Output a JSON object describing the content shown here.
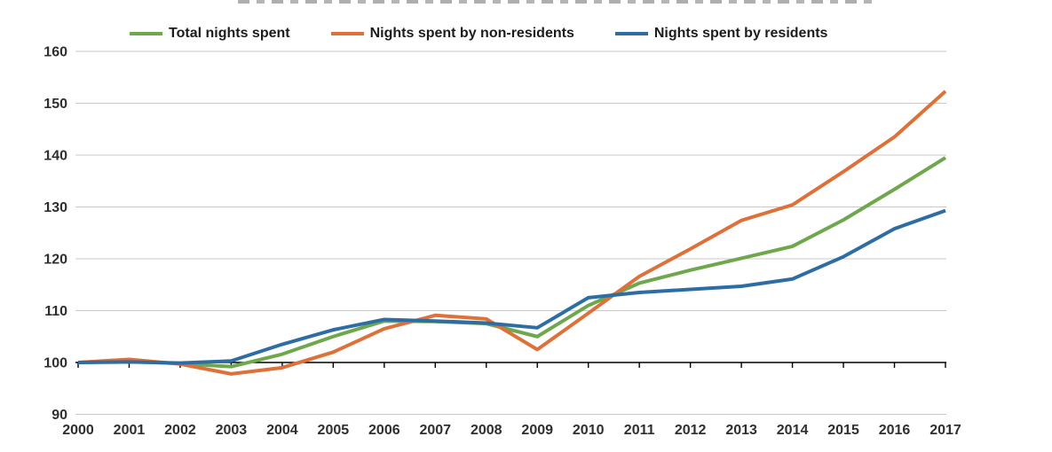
{
  "legend": [
    {
      "label": "Total nights spent",
      "color": "#6FA84C"
    },
    {
      "label": "Nights spent by non-residents",
      "color": "#DE7139"
    },
    {
      "label": "Nights spent by residents",
      "color": "#2E6DA4"
    }
  ],
  "chart_data": {
    "type": "line",
    "title_visible": false,
    "x": [
      2000,
      2001,
      2002,
      2003,
      2004,
      2005,
      2006,
      2007,
      2008,
      2009,
      2010,
      2011,
      2012,
      2013,
      2014,
      2015,
      2016,
      2017
    ],
    "series": [
      {
        "id": "total",
        "name": "Total nights spent",
        "color": "#6FA84C",
        "values": [
          100,
          100.2,
          99.8,
          99.2,
          101.6,
          105.0,
          108.0,
          107.9,
          107.5,
          105.0,
          111.0,
          115.3,
          117.8,
          120.1,
          122.4,
          127.5,
          133.4,
          139.5
        ]
      },
      {
        "id": "non-residents",
        "name": "Nights spent by non-residents",
        "color": "#DE7139",
        "values": [
          100,
          100.6,
          99.7,
          97.8,
          99.0,
          102.0,
          106.5,
          109.1,
          108.4,
          102.5,
          109.5,
          116.6,
          121.9,
          127.4,
          130.4,
          136.8,
          143.5,
          152.3
        ]
      },
      {
        "id": "residents",
        "name": "Nights spent by residents",
        "color": "#2E6DA4",
        "values": [
          100,
          100.1,
          99.9,
          100.3,
          103.5,
          106.3,
          108.3,
          108.0,
          107.6,
          106.7,
          112.5,
          113.5,
          114.1,
          114.7,
          116.1,
          120.4,
          125.8,
          129.3
        ]
      }
    ],
    "ylim": [
      90,
      160
    ],
    "yticks": [
      90,
      100,
      110,
      120,
      130,
      140,
      150,
      160
    ],
    "baseline_value": 100,
    "grid": true,
    "grid_color": "#c9c9c9",
    "axis_color": "#000000",
    "tick_label_color": "#2f2f2f",
    "legend_position": "top"
  }
}
